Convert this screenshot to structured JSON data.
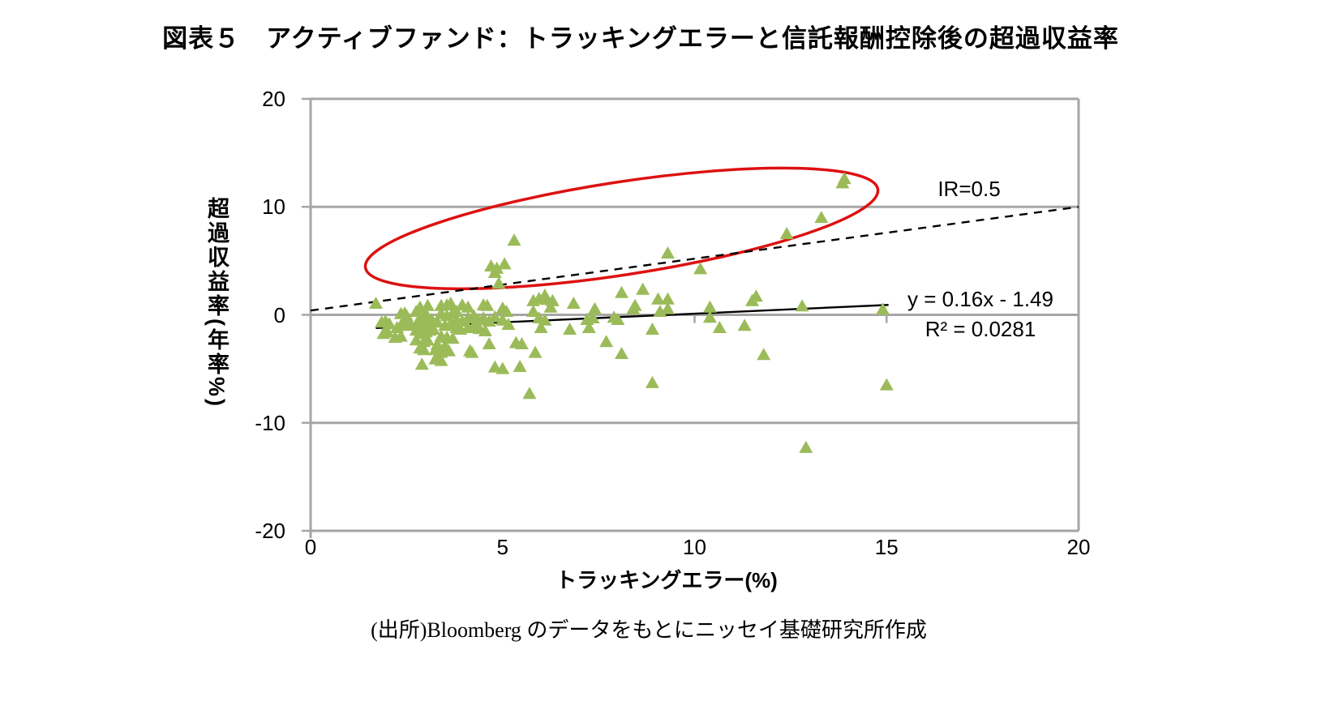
{
  "page_title": "図表５　アクティブファンド：トラッキングエラーと信託報酬控除後の超過収益率",
  "source_note": "(出所)Bloomberg のデータをもとにニッセイ基礎研究所作成",
  "chart_data": {
    "type": "scatter",
    "title": "図表５　アクティブファンド：トラッキングエラーと信託報酬控除後の超過収益率",
    "xlabel": "トラッキングエラー(%)",
    "ylabel": "超過収益率(年率%)",
    "xlim": [
      0,
      20
    ],
    "ylim": [
      -20,
      20
    ],
    "xticks": [
      0,
      5,
      10,
      15,
      20
    ],
    "yticks": [
      20,
      10,
      0,
      -10,
      -20
    ],
    "grid": "horizontal",
    "ir_label": "IR=0.5",
    "trend_label_line1": "y = 0.16x - 1.49",
    "trend_label_line2": "R² = 0.0281",
    "colors": {
      "marker": "#9BBB59",
      "gridline": "#A6A6A6",
      "ellipse": "#DD1111",
      "trend": "#000000",
      "reference": "#000000"
    },
    "reference_line": {
      "name": "IR=0.5 line",
      "style": "dashed",
      "x1": 0,
      "y1": 0.4,
      "x2": 20,
      "y2": 10
    },
    "trend_line": {
      "slope": 0.16,
      "intercept": -1.49,
      "r_squared": 0.0281,
      "x1": 1.7,
      "y1": -1.22,
      "x2": 15.05,
      "y2": 0.92
    },
    "highlight_ellipse": {
      "cx": 8.1,
      "cy": 8.0,
      "rx_x_units": 6.75,
      "ry_y_units": 4.3,
      "rotation_deg": -8.7
    },
    "points": [
      [
        1.7,
        1.05
      ],
      [
        1.85,
        -0.7
      ],
      [
        1.95,
        -0.6
      ],
      [
        2.05,
        -0.85
      ],
      [
        1.9,
        -1.75
      ],
      [
        2.0,
        -1.6
      ],
      [
        2.35,
        0.1
      ],
      [
        2.45,
        0.15
      ],
      [
        2.5,
        -0.1
      ],
      [
        2.4,
        -0.7
      ],
      [
        2.5,
        -1.0
      ],
      [
        2.6,
        -0.85
      ],
      [
        2.25,
        -1.2
      ],
      [
        2.2,
        -2.1
      ],
      [
        2.35,
        -2.0
      ],
      [
        2.75,
        0.3
      ],
      [
        2.85,
        0.7
      ],
      [
        3.05,
        0.85
      ],
      [
        3.0,
        0.1
      ],
      [
        2.9,
        -0.25
      ],
      [
        2.8,
        -0.6
      ],
      [
        2.9,
        -1.0
      ],
      [
        3.05,
        -0.85
      ],
      [
        3.15,
        -0.45
      ],
      [
        2.75,
        -1.45
      ],
      [
        2.85,
        -1.75
      ],
      [
        3.0,
        -1.6
      ],
      [
        3.1,
        -1.45
      ],
      [
        3.2,
        -1.35
      ],
      [
        2.75,
        -2.35
      ],
      [
        2.95,
        -2.5
      ],
      [
        3.05,
        -2.35
      ],
      [
        2.85,
        -3.1
      ],
      [
        2.95,
        -3.25
      ],
      [
        2.9,
        -4.6
      ],
      [
        3.4,
        0.85
      ],
      [
        3.55,
        0.9
      ],
      [
        3.65,
        1.05
      ],
      [
        3.4,
        0.1
      ],
      [
        3.55,
        -0.1
      ],
      [
        3.7,
        0.15
      ],
      [
        3.8,
        0.3
      ],
      [
        3.95,
        0.9
      ],
      [
        4.1,
        0.7
      ],
      [
        3.3,
        -0.7
      ],
      [
        3.5,
        -1.0
      ],
      [
        3.65,
        -0.85
      ],
      [
        3.8,
        -1.2
      ],
      [
        3.9,
        -1.35
      ],
      [
        4.1,
        -1.2
      ],
      [
        4.25,
        -1.05
      ],
      [
        3.8,
        -0.45
      ],
      [
        3.95,
        -0.6
      ],
      [
        4.1,
        -0.3
      ],
      [
        4.25,
        -0.1
      ],
      [
        3.4,
        -2.0
      ],
      [
        3.55,
        -2.1
      ],
      [
        3.7,
        -2.2
      ],
      [
        3.3,
        -2.75
      ],
      [
        3.5,
        -2.9
      ],
      [
        3.25,
        -3.25
      ],
      [
        3.4,
        -3.5
      ],
      [
        3.6,
        -3.35
      ],
      [
        3.25,
        -4.1
      ],
      [
        3.4,
        -4.25
      ],
      [
        4.15,
        -3.35
      ],
      [
        4.35,
        -0.45
      ],
      [
        4.5,
        0.9
      ],
      [
        4.6,
        0.85
      ],
      [
        4.5,
        -0.3
      ],
      [
        4.65,
        -0.6
      ],
      [
        4.8,
        -0.2
      ],
      [
        4.4,
        -1.3
      ],
      [
        4.55,
        -1.5
      ],
      [
        4.2,
        -3.5
      ],
      [
        4.65,
        -2.7
      ],
      [
        4.7,
        4.5
      ],
      [
        4.85,
        4.3
      ],
      [
        5.05,
        4.7
      ],
      [
        4.8,
        3.9
      ],
      [
        5.3,
        6.9
      ],
      [
        4.9,
        2.9
      ],
      [
        5.0,
        0.6
      ],
      [
        5.1,
        0.3
      ],
      [
        5.0,
        -0.5
      ],
      [
        5.15,
        -0.9
      ],
      [
        5.0,
        -5.0
      ],
      [
        4.8,
        -4.85
      ],
      [
        5.35,
        -2.6
      ],
      [
        5.5,
        -2.7
      ],
      [
        5.45,
        -4.8
      ],
      [
        5.7,
        -7.3
      ],
      [
        5.8,
        1.3
      ],
      [
        5.95,
        1.5
      ],
      [
        5.8,
        0.3
      ],
      [
        5.95,
        -0.3
      ],
      [
        6.1,
        -0.5
      ],
      [
        5.85,
        -3.5
      ],
      [
        6.15,
        1.4
      ],
      [
        6.1,
        1.8
      ],
      [
        6.3,
        1.3
      ],
      [
        6.25,
        0.7
      ],
      [
        6.0,
        -1.2
      ],
      [
        6.75,
        -1.35
      ],
      [
        6.85,
        1.05
      ],
      [
        7.2,
        -0.45
      ],
      [
        7.35,
        -0.3
      ],
      [
        7.25,
        -1.2
      ],
      [
        7.4,
        0.55
      ],
      [
        7.7,
        -2.5
      ],
      [
        7.9,
        -0.25
      ],
      [
        8.0,
        -0.45
      ],
      [
        8.1,
        -3.6
      ],
      [
        8.4,
        0.55
      ],
      [
        8.45,
        0.85
      ],
      [
        8.1,
        2.05
      ],
      [
        8.65,
        2.35
      ],
      [
        8.9,
        -1.35
      ],
      [
        8.9,
        -6.3
      ],
      [
        9.05,
        1.45
      ],
      [
        9.1,
        0.3
      ],
      [
        9.3,
        1.45
      ],
      [
        9.3,
        0.55
      ],
      [
        9.3,
        5.7
      ],
      [
        10.15,
        4.25
      ],
      [
        10.4,
        0.7
      ],
      [
        10.4,
        -0.25
      ],
      [
        10.65,
        -1.2
      ],
      [
        11.3,
        -1.0
      ],
      [
        11.5,
        1.3
      ],
      [
        11.6,
        1.7
      ],
      [
        11.8,
        -3.7
      ],
      [
        12.4,
        7.5
      ],
      [
        12.8,
        0.8
      ],
      [
        12.9,
        -12.3
      ],
      [
        13.3,
        9.0
      ],
      [
        13.85,
        12.2
      ],
      [
        13.9,
        12.6
      ],
      [
        14.9,
        0.5
      ],
      [
        15.0,
        -6.5
      ]
    ]
  }
}
